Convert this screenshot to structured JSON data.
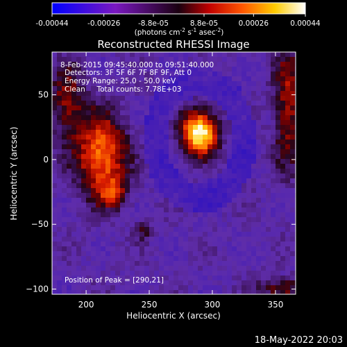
{
  "colorbar": {
    "tick_labels": [
      "-0.00044",
      "-0.00026",
      "-8.8e-05",
      "8.8e-05",
      "0.00026",
      "0.00044"
    ],
    "tick_values": [
      -0.00044,
      -0.00026,
      -8.8e-05,
      8.8e-05,
      0.00026,
      0.00044
    ],
    "range": [
      -0.00044,
      0.00044
    ],
    "units_prefix": "(photons cm",
    "units_exp1": "-2",
    "units_mid1": " s",
    "units_exp2": "-1",
    "units_mid2": " asec",
    "units_exp3": "-2",
    "units_suffix": ")"
  },
  "title": "Reconstructed RHESSI Image",
  "info": {
    "line1": "8-Feb-2015 09:45:40.000 to 09:51:40.000",
    "line2": "Detectors: 3F 5F 6F 7F 8F 9F, Att 0",
    "line3": "Energy Range: 25.0 - 50.0 keV",
    "line4": "Clean     Total counts: 7.78E+03",
    "peak": "Position of Peak = [290,21]"
  },
  "axes": {
    "xlabel": "Heliocentric X (arcsec)",
    "ylabel": "Heliocentric Y (arcsec)",
    "xlim": [
      173,
      366
    ],
    "ylim": [
      -104,
      83
    ],
    "x_ticks": [
      200,
      250,
      300,
      350
    ],
    "x_tick_labels": [
      "200",
      "250",
      "300",
      "350"
    ],
    "y_ticks": [
      50,
      0,
      -50,
      -100
    ],
    "y_tick_labels": [
      "50",
      "0",
      "−50",
      "−100"
    ]
  },
  "footer": {
    "timestamp": "18-May-2022 20:03"
  },
  "chart_data": {
    "type": "heatmap",
    "title": "Reconstructed RHESSI Image",
    "xlabel": "Heliocentric X (arcsec)",
    "ylabel": "Heliocentric Y (arcsec)",
    "xlim": [
      173,
      366
    ],
    "ylim": [
      -104,
      83
    ],
    "color_range": [
      -0.00044,
      0.00044
    ],
    "colormap": "blue-purple-red-yellow-white",
    "peak_position": [
      290,
      21
    ],
    "sources": [
      {
        "x": 290,
        "y": 21,
        "sigma_x": 10,
        "sigma_y": 12,
        "amp": 1.0
      },
      {
        "x": 212,
        "y": 3,
        "sigma_x": 14,
        "sigma_y": 22,
        "amp": 0.72
      },
      {
        "x": 222,
        "y": -26,
        "sigma_x": 8,
        "sigma_y": 8,
        "amp": 0.35
      },
      {
        "x": 185,
        "y": 45,
        "sigma_x": 10,
        "sigma_y": 20,
        "amp": 0.4
      },
      {
        "x": 360,
        "y": 40,
        "sigma_x": 8,
        "sigma_y": 35,
        "amp": 0.45
      },
      {
        "x": 355,
        "y": -100,
        "sigma_x": 14,
        "sigma_y": 6,
        "amp": 0.4
      },
      {
        "x": 245,
        "y": -55,
        "sigma_x": 5,
        "sigma_y": 5,
        "amp": 0.25
      }
    ]
  }
}
